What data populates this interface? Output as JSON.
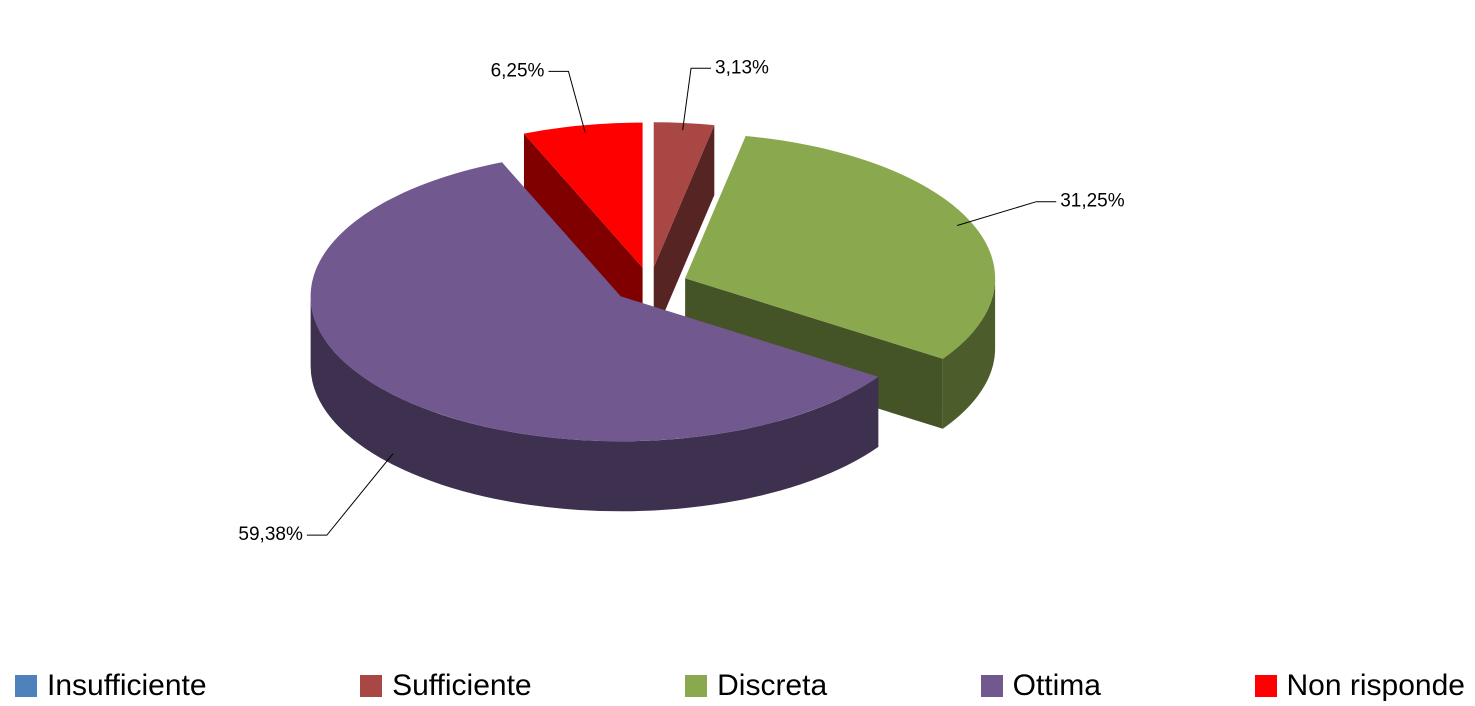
{
  "chart_data": {
    "type": "pie3d",
    "categories": [
      "Insufficiente",
      "Sufficiente",
      "Discreta",
      "Ottima",
      "Non risponde"
    ],
    "values": [
      0,
      3.13,
      31.25,
      59.38,
      6.25
    ],
    "value_labels": [
      null,
      "3,13%",
      "31,25%",
      "59,38%",
      "6,25%"
    ],
    "colors": [
      "#4f81bd",
      "#a94745",
      "#8aa84d",
      "#71588f",
      "#ff0000"
    ],
    "legend": "bottom"
  }
}
